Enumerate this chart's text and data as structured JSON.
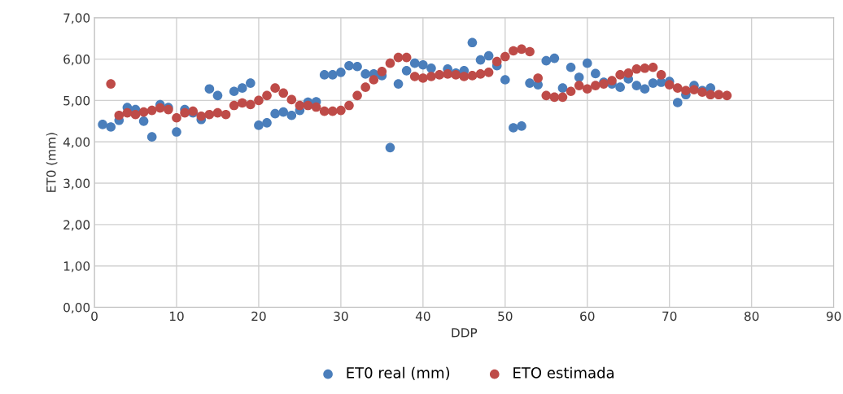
{
  "chart_data": {
    "type": "scatter",
    "xlabel": "DDP",
    "ylabel": "ET0 (mm)",
    "xlim": [
      0,
      90
    ],
    "xticks": [
      0,
      10,
      20,
      30,
      40,
      50,
      60,
      70,
      80,
      90
    ],
    "ylim": [
      0,
      7
    ],
    "yticks": [
      {
        "value": 0,
        "label": "0,00"
      },
      {
        "value": 1,
        "label": "1,00"
      },
      {
        "value": 2,
        "label": "2,00"
      },
      {
        "value": 3,
        "label": "3,00"
      },
      {
        "value": 4,
        "label": "4,00"
      },
      {
        "value": 5,
        "label": "5,00"
      },
      {
        "value": 6,
        "label": "6,00"
      },
      {
        "value": 7,
        "label": "7,00"
      }
    ],
    "grid": true,
    "legend": "bottom",
    "marker": "circle",
    "series": [
      {
        "name": "ET0 real (mm)",
        "color": "#4a7ebb",
        "x": [
          1,
          2,
          3,
          4,
          5,
          6,
          7,
          8,
          9,
          10,
          11,
          12,
          13,
          14,
          15,
          16,
          17,
          18,
          19,
          20,
          21,
          22,
          23,
          24,
          25,
          26,
          27,
          28,
          29,
          30,
          31,
          32,
          33,
          34,
          35,
          36,
          37,
          38,
          39,
          40,
          41,
          42,
          43,
          44,
          45,
          46,
          47,
          48,
          49,
          50,
          51,
          52,
          53,
          54,
          55,
          56,
          57,
          58,
          59,
          60,
          61,
          62,
          63,
          64,
          65,
          66,
          67,
          68,
          69,
          70,
          71,
          72,
          73,
          74,
          75
        ],
        "values": [
          4.42,
          4.36,
          4.52,
          4.83,
          4.78,
          4.5,
          4.12,
          4.9,
          4.83,
          4.24,
          4.78,
          4.7,
          4.54,
          5.28,
          5.12,
          null,
          5.22,
          5.3,
          5.42,
          4.4,
          4.46,
          4.68,
          4.72,
          4.64,
          4.76,
          4.96,
          4.97,
          5.62,
          5.62,
          5.68,
          5.84,
          5.82,
          5.64,
          5.64,
          5.6,
          3.86,
          5.4,
          5.72,
          5.9,
          5.86,
          5.78,
          null,
          5.76,
          5.66,
          5.72,
          6.4,
          5.98,
          6.08,
          5.84,
          5.5,
          4.34,
          4.38,
          5.42,
          5.38,
          5.96,
          6.02,
          5.3,
          5.8,
          5.56,
          5.9,
          5.65,
          5.44,
          5.4,
          5.32,
          5.52,
          5.36,
          5.28,
          5.42,
          5.44,
          5.46,
          4.95,
          5.14,
          5.36,
          5.24,
          5.3
        ]
      },
      {
        "name": "ETO estimada",
        "color": "#be4b48",
        "x": [
          2,
          3,
          4,
          5,
          6,
          7,
          8,
          9,
          10,
          11,
          12,
          13,
          14,
          15,
          16,
          17,
          18,
          19,
          20,
          21,
          22,
          23,
          24,
          25,
          26,
          27,
          28,
          29,
          30,
          31,
          32,
          33,
          34,
          35,
          36,
          37,
          38,
          39,
          40,
          41,
          42,
          43,
          44,
          45,
          46,
          47,
          48,
          49,
          50,
          51,
          52,
          53,
          54,
          55,
          56,
          57,
          58,
          59,
          60,
          61,
          62,
          63,
          64,
          65,
          66,
          67,
          68,
          69,
          70,
          71,
          72,
          73,
          74,
          75,
          76,
          77
        ],
        "values": [
          5.4,
          4.64,
          4.7,
          4.66,
          4.72,
          4.76,
          4.82,
          4.78,
          4.58,
          4.7,
          4.74,
          4.62,
          4.66,
          4.7,
          4.66,
          4.88,
          4.94,
          4.9,
          5.0,
          5.12,
          5.3,
          5.18,
          5.02,
          4.88,
          4.88,
          4.84,
          4.74,
          4.74,
          4.76,
          4.88,
          5.12,
          5.32,
          5.5,
          5.7,
          5.9,
          6.04,
          6.04,
          5.58,
          5.54,
          5.58,
          5.62,
          5.64,
          5.62,
          5.58,
          5.6,
          5.64,
          5.68,
          5.94,
          6.06,
          6.2,
          6.24,
          6.18,
          5.54,
          5.12,
          5.08,
          5.08,
          5.22,
          5.36,
          5.28,
          5.36,
          5.4,
          5.48,
          5.62,
          5.66,
          5.76,
          5.78,
          5.8,
          5.62,
          5.38,
          5.3,
          5.24,
          5.26,
          5.2,
          5.14,
          5.14,
          5.12
        ]
      }
    ]
  }
}
